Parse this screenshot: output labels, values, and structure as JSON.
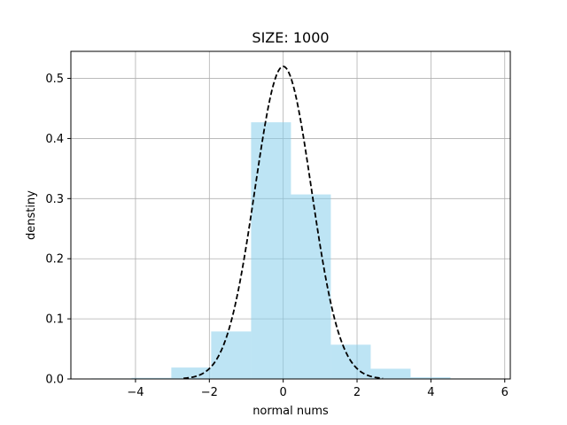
{
  "chart_data": {
    "type": "histogram",
    "title": "SIZE: 1000",
    "xlabel": "normal nums",
    "ylabel": "denstiny",
    "xlim": [
      -5.75,
      6.15
    ],
    "ylim": [
      0,
      0.545
    ],
    "xticks": [
      -4,
      -2,
      0,
      2,
      4,
      6
    ],
    "yticks": [
      0.0,
      0.1,
      0.2,
      0.3,
      0.4,
      0.5
    ],
    "ytick_labels": [
      "0.0",
      "0.1",
      "0.2",
      "0.3",
      "0.4",
      "0.5"
    ],
    "grid": true,
    "bar_color": "#87ceeb",
    "bar_alpha": 0.55,
    "bins": [
      {
        "x0": -5.19,
        "x1": -4.11,
        "density": 0.0009
      },
      {
        "x0": -4.11,
        "x1": -3.03,
        "density": 0.0018
      },
      {
        "x0": -3.03,
        "x1": -1.95,
        "density": 0.019
      },
      {
        "x0": -1.95,
        "x1": -0.87,
        "density": 0.079
      },
      {
        "x0": -0.87,
        "x1": 0.21,
        "density": 0.427
      },
      {
        "x0": 0.21,
        "x1": 1.29,
        "density": 0.307
      },
      {
        "x0": 1.29,
        "x1": 2.37,
        "density": 0.057
      },
      {
        "x0": 2.37,
        "x1": 3.45,
        "density": 0.017
      },
      {
        "x0": 3.45,
        "x1": 4.53,
        "density": 0.0028
      },
      {
        "x0": 4.53,
        "x1": 5.61,
        "density": 0.0009
      }
    ],
    "curve": {
      "style": "dashed",
      "color": "#000000",
      "x_range": [
        -2.7,
        2.7
      ],
      "peak": 0.52,
      "sigma": 0.766
    }
  }
}
